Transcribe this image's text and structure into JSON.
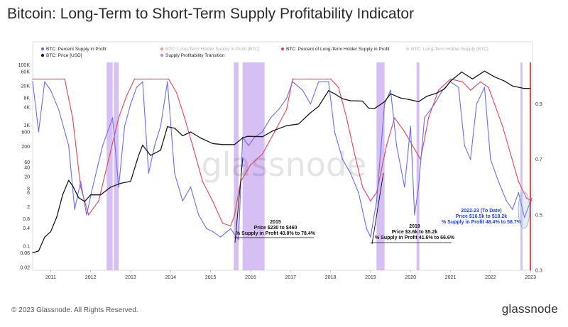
{
  "title": "Bitcoin: Long-Term to Short-Term Supply Profitability Indicator",
  "footer": {
    "copyright": "© 2023 Glassnode. All Rights Reserved.",
    "brand": "glassnode"
  },
  "watermark": "glassnode",
  "colors": {
    "supply_profit": "#6b6ef0",
    "price": "#1a1a1a",
    "lth_supply_profit_btc": "#d9262b",
    "lth_percent_profit": "#e0455a",
    "lth_supply_btc": "#8fb3e0",
    "transition": "#b58be8",
    "axis_right": "#e02020"
  },
  "chart_data": {
    "type": "line",
    "title": "Bitcoin: Long-Term to Short-Term Supply Profitability Indicator",
    "legend": [
      {
        "label": "BTC: Percent Supply in Profit",
        "key": "supply_profit",
        "active": true
      },
      {
        "label": "BTC: Long-Term Holder Supply in Profit [BTC]",
        "key": "lth_supply_profit_btc",
        "active": false
      },
      {
        "label": "BTC: Percent of Long-Term Holder Supply in Profit",
        "key": "lth_percent_profit",
        "active": true
      },
      {
        "label": "BTC: Long-Term Holder Supply [BTC]",
        "key": "lth_supply_btc",
        "active": false
      },
      {
        "label": "BTC: Price [USD]",
        "key": "price",
        "active": true
      },
      {
        "label": "Supply Profitability Transition",
        "key": "transition",
        "active": true
      }
    ],
    "x_ticks": [
      "2011",
      "2012",
      "2013",
      "2014",
      "2015",
      "2016",
      "2017",
      "2018",
      "2019",
      "2020",
      "2021",
      "2022",
      "2023"
    ],
    "x_range": [
      2010.55,
      2023.05
    ],
    "y_left": {
      "scale": "log",
      "ticks": [
        "0.02",
        "0.06",
        "0.1",
        "0.4",
        "0.8",
        "2",
        "6",
        "8",
        "20",
        "40",
        "60",
        "200",
        "600",
        "1K",
        "4K",
        "8K",
        "20K",
        "60K",
        "100K"
      ],
      "values": [
        0.02,
        0.06,
        0.1,
        0.4,
        0.8,
        2,
        6,
        8,
        20,
        40,
        60,
        200,
        600,
        1000,
        4000,
        8000,
        20000,
        60000,
        100000
      ],
      "range": [
        0.016,
        120000
      ]
    },
    "y_right": {
      "ticks": [
        "0.3",
        "0.5",
        "0.7",
        "0.9"
      ],
      "values": [
        0.3,
        0.5,
        0.7,
        0.9
      ],
      "range": [
        0.3,
        1.05
      ]
    },
    "series": [
      {
        "name": "BTC: Price [USD]",
        "key": "price",
        "axis": "left",
        "x": [
          2010.55,
          2010.7,
          2010.85,
          2011.0,
          2011.15,
          2011.3,
          2011.45,
          2011.55,
          2011.7,
          2011.85,
          2012.0,
          2012.25,
          2012.5,
          2012.75,
          2013.0,
          2013.2,
          2013.3,
          2013.5,
          2013.75,
          2013.92,
          2014.1,
          2014.3,
          2014.5,
          2014.75,
          2015.05,
          2015.3,
          2015.6,
          2015.8,
          2015.92,
          2016.3,
          2016.55,
          2016.9,
          2017.2,
          2017.5,
          2017.7,
          2017.95,
          2018.1,
          2018.3,
          2018.5,
          2018.8,
          2018.95,
          2019.1,
          2019.35,
          2019.5,
          2019.75,
          2019.95,
          2020.2,
          2020.4,
          2020.65,
          2020.85,
          2021.0,
          2021.28,
          2021.55,
          2021.85,
          2022.1,
          2022.35,
          2022.55,
          2022.85,
          2023.0
        ],
        "values": [
          0.06,
          0.07,
          0.2,
          0.3,
          0.9,
          5,
          15,
          10,
          4,
          3,
          5,
          5,
          9,
          12,
          14,
          100,
          220,
          100,
          150,
          900,
          800,
          450,
          600,
          380,
          250,
          230,
          230,
          380,
          430,
          420,
          650,
          970,
          1100,
          2600,
          4200,
          14000,
          11000,
          7500,
          6500,
          6300,
          3700,
          3600,
          6000,
          11000,
          8000,
          7200,
          6000,
          9000,
          11500,
          16000,
          29000,
          58000,
          34000,
          62000,
          40000,
          29000,
          20000,
          16500,
          16600
        ]
      },
      {
        "name": "BTC: Percent Supply in Profit",
        "key": "supply_profit",
        "axis": "right",
        "x": [
          2010.55,
          2010.7,
          2010.85,
          2011.0,
          2011.2,
          2011.45,
          2011.6,
          2011.75,
          2011.9,
          2012.05,
          2012.3,
          2012.55,
          2012.7,
          2012.85,
          2013.0,
          2013.15,
          2013.3,
          2013.45,
          2013.6,
          2013.75,
          2013.92,
          2014.1,
          2014.3,
          2014.5,
          2014.7,
          2014.9,
          2015.05,
          2015.25,
          2015.5,
          2015.7,
          2015.8,
          2015.95,
          2016.1,
          2016.3,
          2016.5,
          2016.7,
          2016.9,
          2017.05,
          2017.3,
          2017.5,
          2017.7,
          2017.95,
          2018.1,
          2018.3,
          2018.5,
          2018.7,
          2018.9,
          2019.0,
          2019.15,
          2019.35,
          2019.5,
          2019.65,
          2019.85,
          2020.0,
          2020.1,
          2020.2,
          2020.35,
          2020.6,
          2020.8,
          2021.0,
          2021.2,
          2021.35,
          2021.5,
          2021.65,
          2021.85,
          2022.0,
          2022.2,
          2022.4,
          2022.55,
          2022.7,
          2022.85,
          2022.95,
          2023.03
        ],
        "values": [
          0.98,
          0.8,
          0.98,
          0.95,
          0.88,
          0.75,
          0.52,
          0.62,
          0.5,
          0.6,
          0.75,
          0.85,
          0.6,
          0.82,
          0.9,
          0.96,
          0.98,
          0.65,
          0.75,
          0.82,
          0.98,
          0.65,
          0.55,
          0.6,
          0.5,
          0.45,
          0.44,
          0.42,
          0.45,
          0.41,
          0.78,
          0.75,
          0.78,
          0.8,
          0.85,
          0.88,
          0.92,
          0.98,
          0.95,
          0.9,
          0.98,
          0.98,
          0.8,
          0.7,
          0.65,
          0.58,
          0.45,
          0.42,
          0.55,
          0.9,
          0.95,
          0.75,
          0.6,
          0.82,
          0.5,
          0.6,
          0.85,
          0.9,
          0.95,
          0.98,
          0.96,
          0.75,
          0.7,
          0.9,
          0.96,
          0.7,
          0.62,
          0.55,
          0.52,
          0.58,
          0.49,
          0.53,
          0.56
        ]
      },
      {
        "name": "BTC: Percent of Long-Term Holder Supply in Profit",
        "key": "lth_percent_profit",
        "axis": "right",
        "x": [
          2010.55,
          2011.0,
          2011.15,
          2011.35,
          2011.55,
          2011.75,
          2011.95,
          2012.2,
          2012.45,
          2012.7,
          2012.9,
          2013.1,
          2013.3,
          2013.5,
          2013.75,
          2013.95,
          2014.15,
          2014.35,
          2014.55,
          2014.8,
          2015.05,
          2015.3,
          2015.5,
          2015.6,
          2015.75,
          2016.0,
          2016.3,
          2016.6,
          2016.9,
          2017.05,
          2017.5,
          2017.9,
          2018.0,
          2018.2,
          2018.4,
          2018.6,
          2018.8,
          2019.0,
          2019.15,
          2019.4,
          2019.6,
          2019.85,
          2020.05,
          2020.25,
          2020.45,
          2020.7,
          2021.0,
          2021.3,
          2021.5,
          2021.75,
          2021.95,
          2022.1,
          2022.3,
          2022.5,
          2022.7,
          2022.9,
          2023.03
        ],
        "values": [
          0.99,
          0.99,
          0.99,
          0.99,
          0.85,
          0.6,
          0.5,
          0.55,
          0.7,
          0.85,
          0.93,
          0.99,
          0.99,
          0.99,
          0.99,
          0.99,
          0.94,
          0.85,
          0.75,
          0.62,
          0.55,
          0.47,
          0.46,
          0.5,
          0.62,
          0.68,
          0.72,
          0.8,
          0.88,
          0.99,
          0.99,
          0.99,
          0.99,
          0.96,
          0.85,
          0.72,
          0.6,
          0.55,
          0.58,
          0.75,
          0.85,
          0.8,
          0.75,
          0.7,
          0.85,
          0.95,
          0.99,
          0.98,
          0.95,
          0.98,
          0.96,
          0.9,
          0.82,
          0.72,
          0.62,
          0.56,
          0.55
        ]
      }
    ],
    "transition_periods": [
      [
        2012.4,
        2012.55
      ],
      [
        2012.58,
        2012.7
      ],
      [
        2015.58,
        2015.7
      ],
      [
        2015.8,
        2016.35
      ],
      [
        2019.15,
        2019.35
      ],
      [
        2020.15,
        2020.22
      ],
      [
        2022.75,
        2022.8
      ]
    ],
    "annotations": [
      {
        "lines": [
          "2015",
          "Price $230 to $460",
          "% Supply in Profit 40.8% to 78.4%"
        ],
        "style": "default"
      },
      {
        "lines": [
          "2019",
          "Price $3.6k to $5.2k",
          "% Supply in Profit 41.6% to 66.6%"
        ],
        "style": "default"
      },
      {
        "lines": [
          "2022-23 (To Date)",
          "Price $16.5k to $18.2k",
          "% Supply in Profit 48.4% to 58.7%"
        ],
        "style": "blue"
      }
    ]
  }
}
